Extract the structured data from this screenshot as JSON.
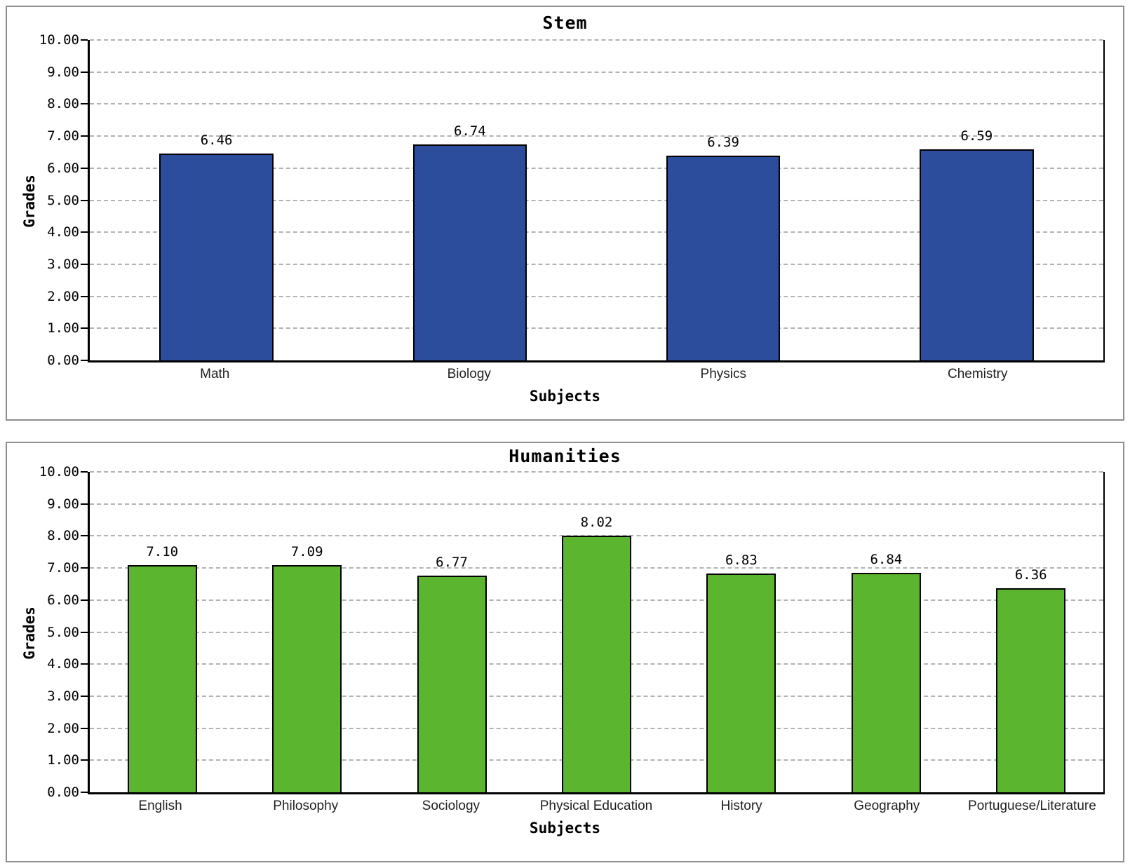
{
  "styles": {
    "panel_border_color": "#8f8f8f",
    "grid_color": "#b3b3b3",
    "axis_color": "#000000",
    "text_color": "#000000",
    "background": "#ffffff"
  },
  "chart_data": [
    {
      "type": "bar",
      "title": "Stem",
      "xlabel": "Subjects",
      "ylabel": "Grades",
      "categories": [
        "Math",
        "Biology",
        "Physics",
        "Chemistry"
      ],
      "values": [
        6.46,
        6.74,
        6.39,
        6.59
      ],
      "bar_labels": [
        "6.46",
        "6.74",
        "6.39",
        "6.59"
      ],
      "bar_color": "#2c4c9c",
      "bar_border_color": "#000000",
      "ylim": [
        0,
        10
      ],
      "ytick_step": 1,
      "ytick_labels": [
        "0.00",
        "1.00",
        "2.00",
        "3.00",
        "4.00",
        "5.00",
        "6.00",
        "7.00",
        "8.00",
        "9.00",
        "10.00"
      ],
      "grid": "horizontal-dashed",
      "legend": false,
      "bar_width_pct": 45
    },
    {
      "type": "bar",
      "title": "Humanities",
      "xlabel": "Subjects",
      "ylabel": "Grades",
      "categories": [
        "English",
        "Philosophy",
        "Sociology",
        "Physical Education",
        "History",
        "Geography",
        "Portuguese/Literature"
      ],
      "values": [
        7.1,
        7.09,
        6.77,
        8.02,
        6.83,
        6.84,
        6.36
      ],
      "bar_labels": [
        "7.10",
        "7.09",
        "6.77",
        "8.02",
        "6.83",
        "6.84",
        "6.36"
      ],
      "bar_color": "#5cb52e",
      "bar_border_color": "#000000",
      "ylim": [
        0,
        10
      ],
      "ytick_step": 1,
      "ytick_labels": [
        "0.00",
        "1.00",
        "2.00",
        "3.00",
        "4.00",
        "5.00",
        "6.00",
        "7.00",
        "8.00",
        "9.00",
        "10.00"
      ],
      "grid": "horizontal-dashed",
      "legend": false,
      "bar_width_pct": 48
    }
  ]
}
